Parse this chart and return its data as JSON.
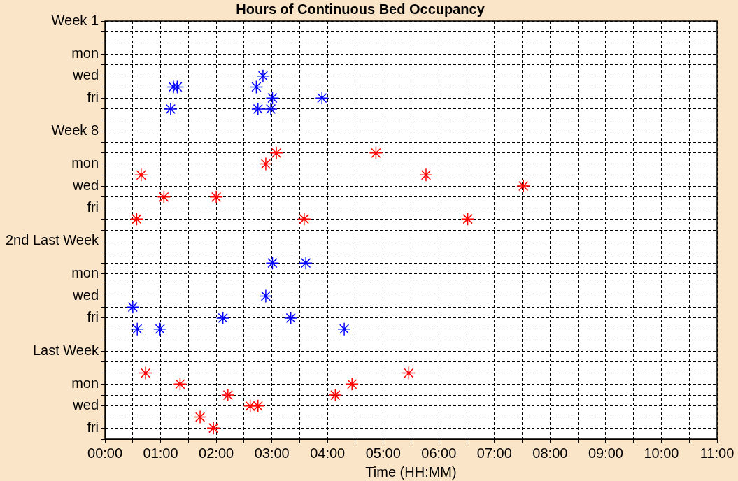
{
  "chart_data": {
    "type": "scatter",
    "orientation": "horizontal",
    "title": "Hours of Continuous Bed Occupancy",
    "xlabel": "Time (HH:MM)",
    "categories": [
      "Week 1",
      null,
      null,
      "mon",
      null,
      "wed",
      null,
      "fri",
      null,
      null,
      "Week 8",
      null,
      null,
      "mon",
      null,
      "wed",
      null,
      "fri",
      null,
      null,
      "2nd Last Week",
      null,
      null,
      "mon",
      null,
      "wed",
      null,
      "fri",
      null,
      null,
      "Last Week",
      null,
      null,
      "mon",
      null,
      "wed",
      null,
      "fri",
      null
    ],
    "xlim": [
      0,
      11
    ],
    "xticks": [
      {
        "value": 0,
        "label": "00:00"
      },
      {
        "value": 0.5,
        "label": null
      },
      {
        "value": 1,
        "label": "01:00"
      },
      {
        "value": 1.5,
        "label": null
      },
      {
        "value": 2,
        "label": "02:00"
      },
      {
        "value": 2.5,
        "label": null
      },
      {
        "value": 3,
        "label": "03:00"
      },
      {
        "value": 3.5,
        "label": null
      },
      {
        "value": 4,
        "label": "04:00"
      },
      {
        "value": 4.5,
        "label": null
      },
      {
        "value": 5,
        "label": "05:00"
      },
      {
        "value": 5.5,
        "label": null
      },
      {
        "value": 6,
        "label": "06:00"
      },
      {
        "value": 6.5,
        "label": null
      },
      {
        "value": 7,
        "label": "07:00"
      },
      {
        "value": 7.5,
        "label": null
      },
      {
        "value": 8,
        "label": "08:00"
      },
      {
        "value": 8.5,
        "label": null
      },
      {
        "value": 9,
        "label": "09:00"
      },
      {
        "value": 9.5,
        "label": null
      },
      {
        "value": 10,
        "label": "10:00"
      },
      {
        "value": 10.5,
        "label": null
      },
      {
        "value": 11,
        "label": "11:00"
      }
    ],
    "grid": true,
    "legend": false,
    "marker": "cross",
    "series": [
      {
        "color": "#0000ff",
        "values": [
          null,
          null,
          null,
          null,
          null,
          2.84,
          1.23,
          3.01,
          1.18,
          null,
          null,
          null,
          null,
          null,
          null,
          null,
          null,
          null,
          null,
          null,
          null,
          null,
          3.01,
          null,
          null,
          2.89,
          0.5,
          2.12,
          0.58,
          null,
          null,
          null,
          null,
          null,
          null,
          null,
          null,
          null,
          null
        ]
      },
      {
        "color": "#0000ff",
        "values": [
          null,
          null,
          null,
          null,
          null,
          null,
          1.3,
          3.9,
          2.75,
          null,
          null,
          null,
          null,
          null,
          null,
          null,
          null,
          null,
          null,
          null,
          null,
          null,
          3.61,
          null,
          null,
          null,
          null,
          3.34,
          0.99,
          null,
          null,
          null,
          null,
          null,
          null,
          null,
          null,
          null,
          null
        ]
      },
      {
        "color": "#0000ff",
        "values": [
          null,
          null,
          null,
          null,
          null,
          null,
          2.72,
          null,
          2.98,
          null,
          null,
          null,
          null,
          null,
          null,
          null,
          null,
          null,
          null,
          null,
          null,
          null,
          null,
          null,
          null,
          null,
          null,
          null,
          4.3,
          null,
          null,
          null,
          null,
          null,
          null,
          null,
          null,
          null,
          null
        ]
      },
      {
        "color": "#ff0000",
        "values": [
          null,
          null,
          null,
          null,
          null,
          null,
          null,
          null,
          null,
          null,
          null,
          null,
          3.08,
          2.89,
          0.65,
          7.52,
          1.06,
          null,
          0.57,
          null,
          null,
          null,
          null,
          null,
          null,
          null,
          null,
          null,
          null,
          null,
          null,
          null,
          0.73,
          1.35,
          2.21,
          2.61,
          1.71,
          1.95,
          null
        ]
      },
      {
        "color": "#ff0000",
        "values": [
          null,
          null,
          null,
          null,
          null,
          null,
          null,
          null,
          null,
          null,
          null,
          null,
          4.87,
          null,
          5.77,
          null,
          2.0,
          null,
          3.58,
          null,
          null,
          null,
          null,
          null,
          null,
          null,
          null,
          null,
          null,
          null,
          null,
          null,
          5.46,
          4.44,
          4.14,
          2.75,
          null,
          null,
          null
        ]
      },
      {
        "color": "#ff0000",
        "values": [
          null,
          null,
          null,
          null,
          null,
          null,
          null,
          null,
          null,
          null,
          null,
          null,
          null,
          null,
          null,
          null,
          null,
          null,
          6.52,
          null,
          null,
          null,
          null,
          null,
          null,
          null,
          null,
          null,
          null,
          null,
          null,
          null,
          null,
          null,
          null,
          null,
          null,
          null,
          null
        ]
      }
    ]
  }
}
